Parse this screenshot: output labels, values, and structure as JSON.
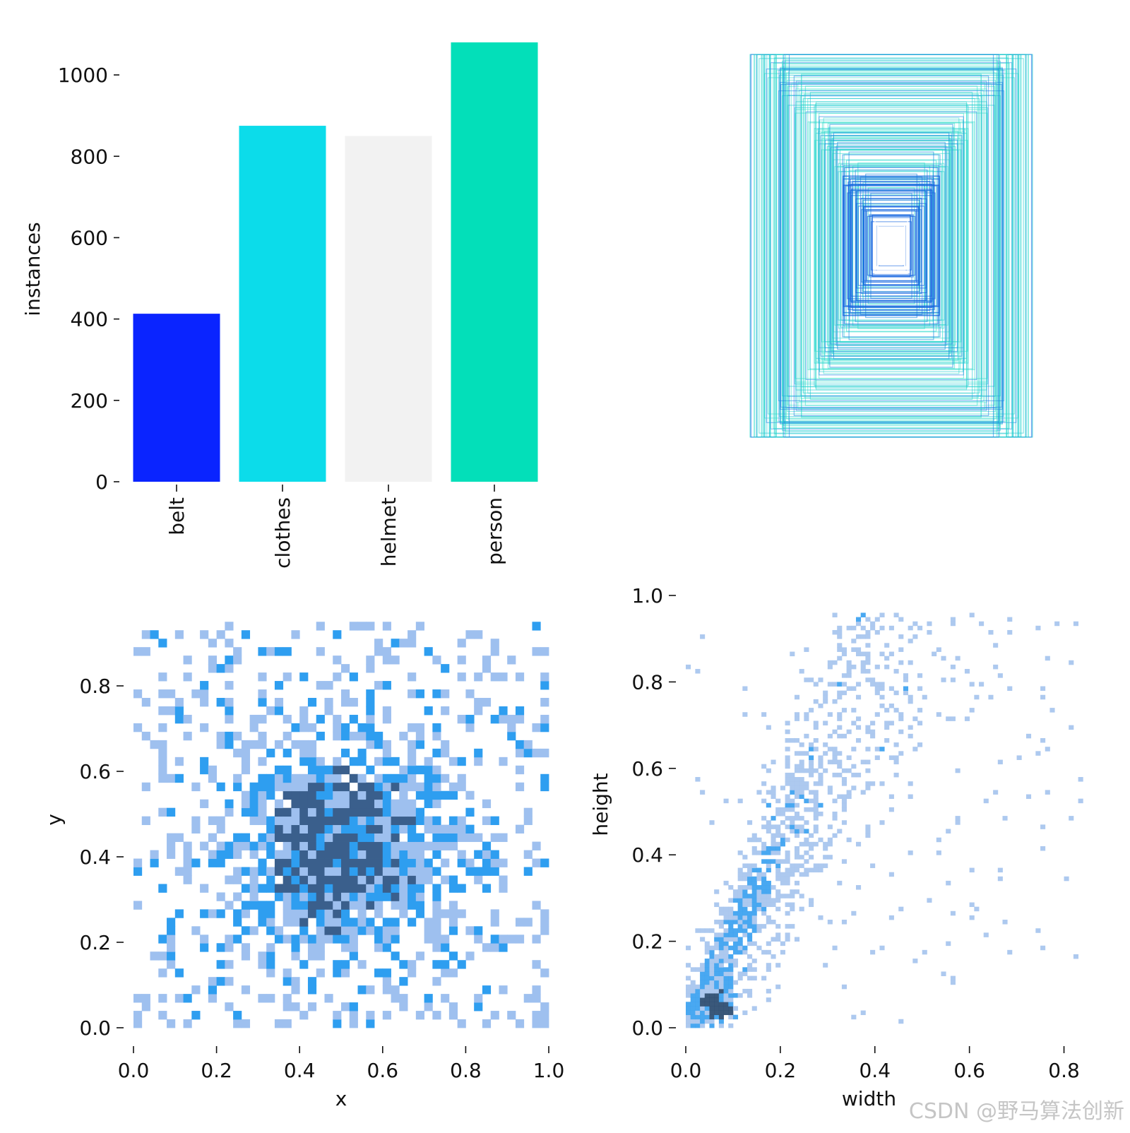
{
  "watermark": "CSDN @野马算法创新",
  "chart_data": [
    {
      "type": "bar",
      "categories": [
        "belt",
        "clothes",
        "helmet",
        "person"
      ],
      "values": [
        413,
        875,
        850,
        1080
      ],
      "colors": [
        "#0a24ff",
        "#0cdcea",
        "#f2f2f2",
        "#03dfb9"
      ],
      "ylabel": "instances",
      "ylim": [
        0,
        1080
      ],
      "yticks": [
        0,
        200,
        400,
        600,
        800,
        1000
      ],
      "grid": false
    },
    {
      "type": "boxes",
      "description_colors": [
        "#2cd8cf",
        "#1f8fe0",
        "#ffffff"
      ],
      "boxes_wh": [
        [
          0.6,
          0.85
        ],
        [
          0.55,
          0.8
        ],
        [
          0.52,
          0.83
        ],
        [
          0.48,
          0.88
        ],
        [
          0.46,
          0.78
        ],
        [
          0.42,
          0.75
        ],
        [
          0.4,
          0.7
        ],
        [
          0.45,
          0.82
        ],
        [
          0.5,
          0.72
        ],
        [
          0.38,
          0.66
        ],
        [
          0.35,
          0.62
        ],
        [
          0.33,
          0.68
        ],
        [
          0.3,
          0.58
        ],
        [
          0.28,
          0.55
        ],
        [
          0.26,
          0.6
        ],
        [
          0.24,
          0.5
        ],
        [
          0.22,
          0.46
        ],
        [
          0.2,
          0.52
        ],
        [
          0.18,
          0.42
        ],
        [
          0.16,
          0.38
        ]
      ]
    },
    {
      "type": "heatmap",
      "xlabel": "x",
      "ylabel": "y",
      "xlim": [
        0,
        1
      ],
      "ylim": [
        0,
        1
      ],
      "xticks": [
        "0.0",
        "0.2",
        "0.4",
        "0.6",
        "0.8",
        "1.0"
      ],
      "yticks": [
        "0.0",
        "0.2",
        "0.4",
        "0.6",
        "0.8"
      ],
      "center": [
        0.5,
        0.42
      ],
      "palette": [
        "#9ec0ef",
        "#2e9ef0",
        "#3a5f8c"
      ]
    },
    {
      "type": "heatmap",
      "xlabel": "width",
      "ylabel": "height",
      "xlim": [
        0,
        0.85
      ],
      "ylim": [
        0,
        1.0
      ],
      "xticks": [
        "0.0",
        "0.2",
        "0.4",
        "0.6",
        "0.8"
      ],
      "yticks": [
        "0.0",
        "0.2",
        "0.4",
        "0.6",
        "0.8",
        "1.0"
      ],
      "palette": [
        "#a9c6ee",
        "#3fa3f0",
        "#2f4f73"
      ]
    }
  ]
}
